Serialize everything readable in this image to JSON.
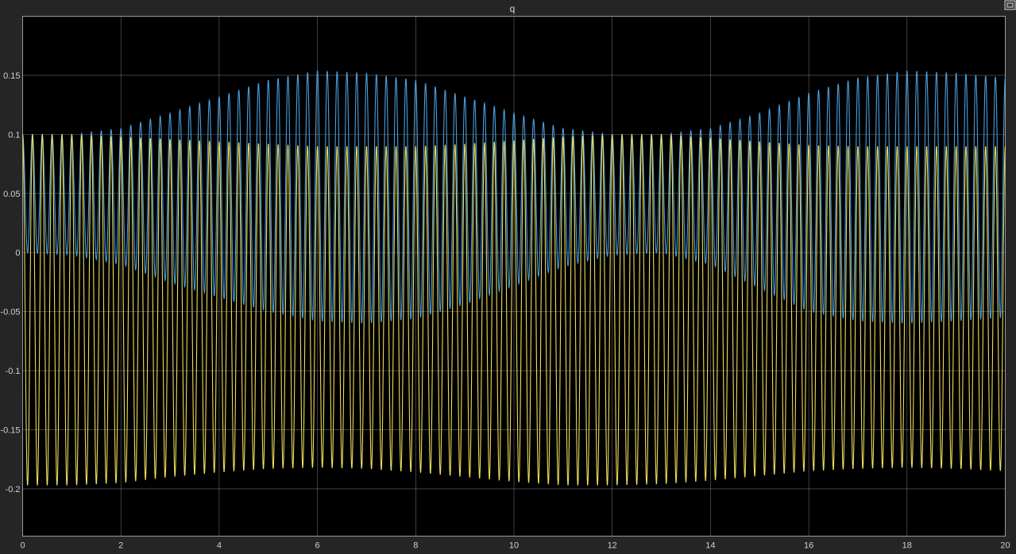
{
  "window": {
    "title": "q",
    "restore_button_icon": "restore-window-icon"
  },
  "colors": {
    "background": "#252525",
    "axes": "#000000",
    "grid": "#bcbcbc",
    "text": "#cfcfcf"
  },
  "chart_data": {
    "type": "line",
    "title": "q",
    "xlabel": "",
    "ylabel": "",
    "xlim": [
      0,
      20
    ],
    "ylim": [
      -0.24,
      0.2
    ],
    "grid": true,
    "legend": "none",
    "x_ticks": [
      0,
      2,
      4,
      6,
      8,
      10,
      12,
      14,
      16,
      18,
      20
    ],
    "x_tick_labels": [
      "0",
      "2",
      "4",
      "6",
      "8",
      "10",
      "12",
      "14",
      "16",
      "18",
      "20"
    ],
    "y_ticks": [
      0.15,
      0.1,
      0.05,
      0,
      -0.05,
      -0.1,
      -0.15,
      -0.2
    ],
    "y_tick_labels": [
      "0.15",
      "0.1",
      "0.05",
      "0",
      "-0.05",
      "-0.1",
      "-0.15",
      "-0.2"
    ],
    "series": [
      {
        "color": "#4a9fe0",
        "description": "fast oscillation with slowly varying envelope",
        "oscillation_periods_in_range": 100,
        "envelope_period": 12.3,
        "x": [
          0,
          1,
          2,
          3,
          4,
          5,
          6,
          7,
          8,
          9,
          10,
          11,
          12,
          13,
          14,
          15,
          16,
          17,
          18,
          19,
          20
        ],
        "upper": [
          0.1,
          0.1,
          0.105,
          0.118,
          0.132,
          0.146,
          0.154,
          0.152,
          0.146,
          0.132,
          0.118,
          0.105,
          0.1,
          0.1,
          0.105,
          0.118,
          0.135,
          0.148,
          0.154,
          0.152,
          0.148
        ],
        "lower": [
          0.0,
          -0.002,
          -0.01,
          -0.025,
          -0.038,
          -0.05,
          -0.058,
          -0.06,
          -0.056,
          -0.044,
          -0.028,
          -0.012,
          -0.002,
          0.0,
          -0.01,
          -0.03,
          -0.05,
          -0.058,
          -0.06,
          -0.058,
          -0.055
        ]
      },
      {
        "color": "#eedc5b",
        "description": "fast oscillation with slowly varying envelope",
        "oscillation_periods_in_range": 100,
        "envelope_period": 12.3,
        "x": [
          0,
          1,
          2,
          3,
          4,
          5,
          6,
          7,
          8,
          9,
          10,
          11,
          12,
          13,
          14,
          15,
          16,
          17,
          18,
          19,
          20
        ],
        "upper": [
          0.1,
          0.1,
          0.098,
          0.096,
          0.094,
          0.092,
          0.09,
          0.09,
          0.09,
          0.092,
          0.095,
          0.098,
          0.1,
          0.1,
          0.097,
          0.094,
          0.091,
          0.09,
          0.09,
          0.09,
          0.09
        ],
        "lower": [
          -0.197,
          -0.197,
          -0.195,
          -0.19,
          -0.186,
          -0.183,
          -0.182,
          -0.183,
          -0.186,
          -0.19,
          -0.194,
          -0.197,
          -0.197,
          -0.196,
          -0.193,
          -0.189,
          -0.185,
          -0.183,
          -0.182,
          -0.183,
          -0.185
        ]
      }
    ]
  }
}
